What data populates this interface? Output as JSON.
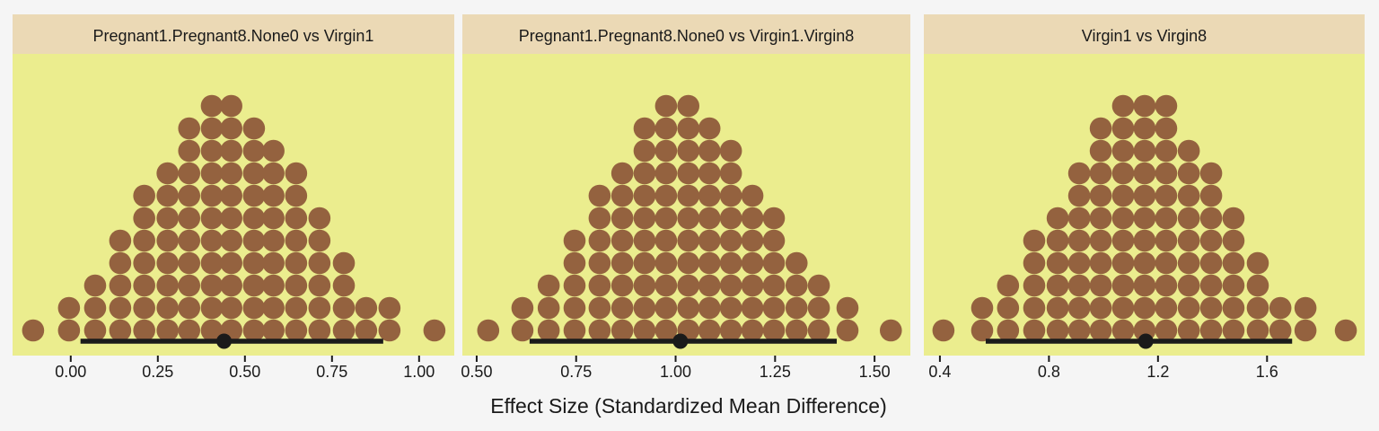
{
  "chart_data": {
    "type": "dotplot",
    "xlabel": "Effect Size (Standardized Mean Difference)",
    "colors": {
      "background": "#f5f5f5",
      "strip": "#ebd9b5",
      "panel": "#ebed8e",
      "dot": "#94623f",
      "interval": "#1a1a1a"
    },
    "panels": [
      {
        "title": "Pregnant1.Pregnant8.None0 vs Virgin1",
        "xlim": [
          -0.167,
          1.101
        ],
        "ticks": [
          0,
          0.25,
          0.5,
          0.75,
          1.0
        ],
        "tick_labels": [
          "0.00",
          "0.25",
          "0.50",
          "0.75",
          "1.00"
        ],
        "bins": [
          {
            "x": -0.108,
            "count": 1
          },
          {
            "x": -0.005,
            "count": 2
          },
          {
            "x": 0.07,
            "count": 3
          },
          {
            "x": 0.142,
            "count": 5
          },
          {
            "x": 0.211,
            "count": 7
          },
          {
            "x": 0.278,
            "count": 8
          },
          {
            "x": 0.34,
            "count": 10
          },
          {
            "x": 0.405,
            "count": 11
          },
          {
            "x": 0.461,
            "count": 11
          },
          {
            "x": 0.526,
            "count": 10
          },
          {
            "x": 0.582,
            "count": 9
          },
          {
            "x": 0.647,
            "count": 8
          },
          {
            "x": 0.714,
            "count": 6
          },
          {
            "x": 0.784,
            "count": 4
          },
          {
            "x": 0.848,
            "count": 2
          },
          {
            "x": 0.915,
            "count": 2
          },
          {
            "x": 1.044,
            "count": 1
          }
        ],
        "point_estimate": 0.44,
        "interval": [
          0.028,
          0.897
        ]
      },
      {
        "title": "Pregnant1.Pregnant8.None0 vs Virgin1.Virgin8",
        "xlim": [
          0.464,
          1.59
        ],
        "ticks": [
          0.5,
          0.75,
          1.0,
          1.25,
          1.5
        ],
        "tick_labels": [
          "0.50",
          "0.75",
          "1.00",
          "1.25",
          "1.50"
        ],
        "bins": [
          {
            "x": 0.529,
            "count": 1
          },
          {
            "x": 0.615,
            "count": 2
          },
          {
            "x": 0.681,
            "count": 3
          },
          {
            "x": 0.746,
            "count": 5
          },
          {
            "x": 0.809,
            "count": 7
          },
          {
            "x": 0.866,
            "count": 8
          },
          {
            "x": 0.922,
            "count": 10
          },
          {
            "x": 0.976,
            "count": 11
          },
          {
            "x": 1.032,
            "count": 11
          },
          {
            "x": 1.085,
            "count": 10
          },
          {
            "x": 1.139,
            "count": 9
          },
          {
            "x": 1.193,
            "count": 7
          },
          {
            "x": 1.247,
            "count": 6
          },
          {
            "x": 1.304,
            "count": 4
          },
          {
            "x": 1.36,
            "count": 3
          },
          {
            "x": 1.432,
            "count": 2
          },
          {
            "x": 1.541,
            "count": 1
          }
        ],
        "point_estimate": 1.012,
        "interval": [
          0.633,
          1.405
        ]
      },
      {
        "title": "Virgin1 vs Virgin8",
        "xlim": [
          0.341,
          1.958
        ],
        "ticks": [
          0.4,
          0.8,
          1.2,
          1.6
        ],
        "tick_labels": [
          "0.4",
          "0.8",
          "1.2",
          "1.6"
        ],
        "bins": [
          {
            "x": 0.413,
            "count": 1
          },
          {
            "x": 0.555,
            "count": 2
          },
          {
            "x": 0.65,
            "count": 3
          },
          {
            "x": 0.746,
            "count": 5
          },
          {
            "x": 0.832,
            "count": 6
          },
          {
            "x": 0.911,
            "count": 8
          },
          {
            "x": 0.99,
            "count": 10
          },
          {
            "x": 1.072,
            "count": 11
          },
          {
            "x": 1.151,
            "count": 11
          },
          {
            "x": 1.23,
            "count": 11
          },
          {
            "x": 1.313,
            "count": 9
          },
          {
            "x": 1.395,
            "count": 8
          },
          {
            "x": 1.477,
            "count": 6
          },
          {
            "x": 1.566,
            "count": 4
          },
          {
            "x": 1.649,
            "count": 2
          },
          {
            "x": 1.741,
            "count": 2
          },
          {
            "x": 1.889,
            "count": 1
          }
        ],
        "point_estimate": 1.155,
        "interval": [
          0.568,
          1.692
        ]
      }
    ]
  }
}
